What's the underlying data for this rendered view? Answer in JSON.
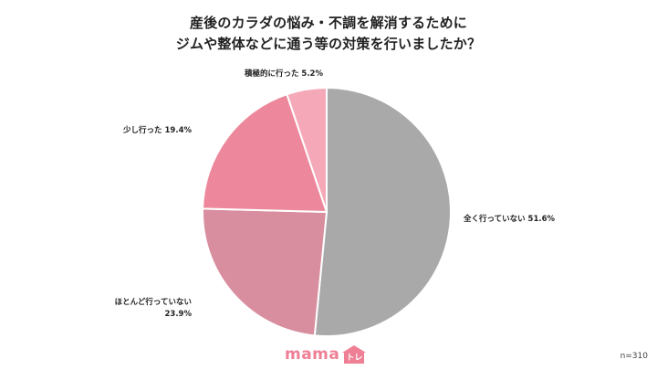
{
  "title": {
    "line1": "産後のカラダの悩み・不調を解消するために",
    "line2": "ジムや整体などに通う等の対策を行いましたか？"
  },
  "chart_data": {
    "type": "pie",
    "start": "12 o'clock",
    "direction": "clockwise",
    "slices": [
      {
        "label": "全く行っていない",
        "value": 51.6,
        "display": "全く行っていない 51.6%",
        "color": "#a9a9a9"
      },
      {
        "label": "ほとんど行っていない",
        "value": 23.9,
        "display": [
          "ほとんど行っていない",
          "23.9%"
        ],
        "color": "#d88e9e"
      },
      {
        "label": "少し行った",
        "value": 19.4,
        "display": "少し行った 19.4%",
        "color": "#ed889c"
      },
      {
        "label": "積極的に行った",
        "value": 5.2,
        "display": "積極的に行った 5.2%",
        "color": "#f5a9b8"
      }
    ]
  },
  "logo": {
    "text": "mama",
    "badge": "トレ",
    "color": "#ee7f95"
  },
  "sample_size": "n=310"
}
